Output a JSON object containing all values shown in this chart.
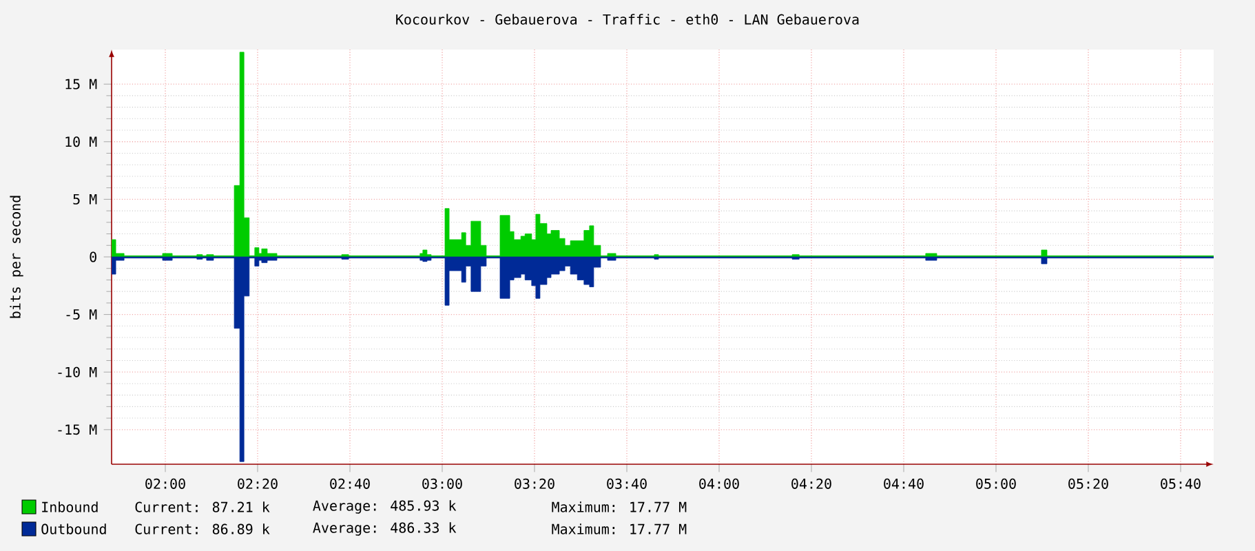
{
  "chart_data": {
    "type": "area",
    "title": "Kocourkov - Gebauerova - Traffic - eth0 - LAN Gebauerova",
    "ylabel": "bits per second",
    "x": [
      1.806,
      1.821,
      1.851,
      1.99,
      2.025,
      2.114,
      2.134,
      2.149,
      2.174,
      2.249,
      2.269,
      2.284,
      2.303,
      2.323,
      2.338,
      2.348,
      2.368,
      2.403,
      2.637,
      2.662,
      2.92,
      2.93,
      2.945,
      2.96,
      3.01,
      3.025,
      3.07,
      3.085,
      3.104,
      3.139,
      3.159,
      3.209,
      3.244,
      3.259,
      3.284,
      3.299,
      3.323,
      3.338,
      3.353,
      3.378,
      3.393,
      3.423,
      3.443,
      3.463,
      3.488,
      3.512,
      3.532,
      3.547,
      3.572,
      3.597,
      3.627,
      3.766,
      3.781,
      4.264,
      4.289,
      4.746,
      4.786,
      5.164,
      5.184,
      5.786
    ],
    "series": [
      {
        "name": "Inbound",
        "color": "#00cc00",
        "values": [
          1.5,
          0.3,
          0.1,
          0.3,
          0.1,
          0.2,
          0.1,
          0.2,
          0.1,
          6.2,
          17.77,
          3.4,
          0.1,
          0.8,
          0.3,
          0.7,
          0.3,
          0.1,
          0.2,
          0.1,
          0.3,
          0.6,
          0.2,
          0.1,
          4.2,
          1.5,
          2.1,
          1.0,
          3.1,
          1.0,
          0.1,
          3.6,
          2.2,
          1.5,
          1.8,
          2.0,
          1.5,
          3.7,
          2.9,
          2.0,
          2.3,
          1.6,
          1.0,
          1.4,
          1.4,
          2.3,
          2.7,
          1.0,
          0.1,
          0.3,
          0.1,
          0.2,
          0.1,
          0.2,
          0.1,
          0.3,
          0.1,
          0.6,
          0.1,
          0.1
        ]
      },
      {
        "name": "Outbound",
        "color": "#002a97",
        "values": [
          -1.5,
          -0.3,
          -0.1,
          -0.3,
          -0.1,
          -0.2,
          -0.1,
          -0.3,
          -0.1,
          -6.2,
          -17.77,
          -3.4,
          -0.1,
          -0.8,
          -0.3,
          -0.5,
          -0.3,
          -0.1,
          -0.2,
          -0.1,
          -0.3,
          -0.4,
          -0.3,
          -0.1,
          -4.2,
          -1.2,
          -2.2,
          -0.8,
          -3.0,
          -0.8,
          -0.1,
          -3.6,
          -2.0,
          -1.8,
          -1.5,
          -2.0,
          -2.5,
          -3.6,
          -2.4,
          -1.8,
          -1.5,
          -1.2,
          -0.8,
          -1.5,
          -2.0,
          -2.4,
          -2.6,
          -0.9,
          -0.1,
          -0.3,
          -0.1,
          -0.2,
          -0.1,
          -0.2,
          -0.1,
          -0.3,
          -0.1,
          -0.6,
          -0.1,
          -0.1
        ]
      }
    ],
    "xlim": [
      1.806,
      5.786
    ],
    "ylim": [
      -18,
      18
    ],
    "xticks": [
      {
        "value": 2,
        "label": "02:00"
      },
      {
        "value": 2.3333,
        "label": "02:20"
      },
      {
        "value": 2.6667,
        "label": "02:40"
      },
      {
        "value": 3,
        "label": "03:00"
      },
      {
        "value": 3.3333,
        "label": "03:20"
      },
      {
        "value": 3.6667,
        "label": "03:40"
      },
      {
        "value": 4,
        "label": "04:00"
      },
      {
        "value": 4.3333,
        "label": "04:20"
      },
      {
        "value": 4.6667,
        "label": "04:40"
      },
      {
        "value": 5,
        "label": "05:00"
      },
      {
        "value": 5.3333,
        "label": "05:20"
      },
      {
        "value": 5.6667,
        "label": "05:40"
      }
    ],
    "yticks": [
      {
        "value": -15,
        "label": "-15 M"
      },
      {
        "value": -10,
        "label": "-10 M"
      },
      {
        "value": -5,
        "label": "-5 M"
      },
      0,
      {
        "value": 5,
        "label": "5 M"
      },
      {
        "value": 10,
        "label": "10 M"
      },
      {
        "value": 15,
        "label": "15 M"
      }
    ],
    "grid": true,
    "legend": "bottom",
    "annotations": [
      "Current:   87.21 k",
      "Average:   485.93 k",
      "Maximum:   17.77 M",
      "Current:   86.89 k",
      "Average:   486.33 k",
      "Maximum:   17.77 M"
    ]
  }
}
